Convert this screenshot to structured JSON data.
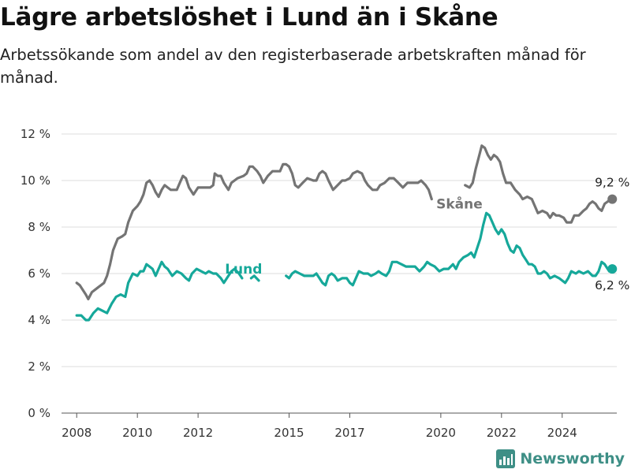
{
  "title": "Lägre arbetslöshet i Lund än i Skåne",
  "subtitle": "Arbetssökande som andel av den registerbaserade arbetskraften månad för månad.",
  "brand": {
    "name": "Newsworthy"
  },
  "colors": {
    "skane": "#747474",
    "lund": "#16a89a",
    "brand": "#3e8f86"
  },
  "chart_data": {
    "type": "line",
    "title": "Lägre arbetslöshet i Lund än i Skåne",
    "subtitle": "Arbetssökande som andel av den registerbaserade arbetskraften månad för månad.",
    "xlim": [
      2007.5,
      2025.8
    ],
    "ylim": [
      0,
      12
    ],
    "y_ticks": [
      0,
      2,
      4,
      6,
      8,
      10,
      12
    ],
    "y_tick_labels": [
      "0 %",
      "2 %",
      "4 %",
      "6 %",
      "8 %",
      "10 %",
      "12 %"
    ],
    "x_ticks": [
      2008,
      2010,
      2012,
      2015,
      2017,
      2020,
      2022,
      2024
    ],
    "x_tick_labels": [
      "2008",
      "2010",
      "2012",
      "2015",
      "2017",
      "2020",
      "2022",
      "2024"
    ],
    "grid": true,
    "legend": "inline labels",
    "series": [
      {
        "name": "Skåne",
        "color": "#747474",
        "end_label": "9,2 %",
        "points": [
          [
            2008.0,
            5.6
          ],
          [
            2008.1,
            5.5
          ],
          [
            2008.2,
            5.3
          ],
          [
            2008.3,
            5.1
          ],
          [
            2008.38,
            4.9
          ],
          [
            2008.5,
            5.2
          ],
          [
            2008.7,
            5.4
          ],
          [
            2008.9,
            5.6
          ],
          [
            2009.0,
            5.9
          ],
          [
            2009.1,
            6.4
          ],
          [
            2009.2,
            7.0
          ],
          [
            2009.35,
            7.5
          ],
          [
            2009.5,
            7.6
          ],
          [
            2009.6,
            7.7
          ],
          [
            2009.7,
            8.2
          ],
          [
            2009.85,
            8.7
          ],
          [
            2010.0,
            8.9
          ],
          [
            2010.1,
            9.1
          ],
          [
            2010.2,
            9.4
          ],
          [
            2010.3,
            9.9
          ],
          [
            2010.4,
            10.0
          ],
          [
            2010.5,
            9.8
          ],
          [
            2010.6,
            9.5
          ],
          [
            2010.7,
            9.3
          ],
          [
            2010.8,
            9.6
          ],
          [
            2010.9,
            9.8
          ],
          [
            2011.0,
            9.7
          ],
          [
            2011.1,
            9.6
          ],
          [
            2011.3,
            9.6
          ],
          [
            2011.4,
            9.9
          ],
          [
            2011.5,
            10.2
          ],
          [
            2011.6,
            10.1
          ],
          [
            2011.7,
            9.7
          ],
          [
            2011.85,
            9.4
          ],
          [
            2012.0,
            9.7
          ],
          [
            2012.2,
            9.7
          ],
          [
            2012.4,
            9.7
          ],
          [
            2012.5,
            9.8
          ],
          [
            2012.55,
            10.3
          ],
          [
            2012.65,
            10.2
          ],
          [
            2012.75,
            10.2
          ],
          [
            2012.85,
            9.9
          ],
          [
            2013.0,
            9.6
          ],
          [
            2013.1,
            9.9
          ],
          [
            2013.3,
            10.1
          ],
          [
            2013.5,
            10.2
          ],
          [
            2013.6,
            10.3
          ],
          [
            2013.7,
            10.6
          ],
          [
            2013.8,
            10.6
          ],
          [
            2013.95,
            10.4
          ],
          [
            2014.05,
            10.2
          ],
          [
            2014.15,
            9.9
          ],
          [
            2014.3,
            10.2
          ],
          [
            2014.45,
            10.4
          ],
          [
            2014.6,
            10.4
          ],
          [
            2014.7,
            10.4
          ],
          [
            2014.8,
            10.7
          ],
          [
            2014.9,
            10.7
          ],
          [
            2015.0,
            10.6
          ],
          [
            2015.1,
            10.3
          ],
          [
            2015.2,
            9.8
          ],
          [
            2015.3,
            9.7
          ],
          [
            2015.45,
            9.9
          ],
          [
            2015.6,
            10.1
          ],
          [
            2015.8,
            10.0
          ],
          [
            2015.9,
            10.0
          ],
          [
            2016.0,
            10.3
          ],
          [
            2016.1,
            10.4
          ],
          [
            2016.2,
            10.3
          ],
          [
            2016.3,
            10.0
          ],
          [
            2016.45,
            9.6
          ],
          [
            2016.6,
            9.8
          ],
          [
            2016.75,
            10.0
          ],
          [
            2016.85,
            10.0
          ],
          [
            2017.0,
            10.1
          ],
          [
            2017.1,
            10.3
          ],
          [
            2017.25,
            10.4
          ],
          [
            2017.4,
            10.3
          ],
          [
            2017.5,
            10.0
          ],
          [
            2017.6,
            9.8
          ],
          [
            2017.75,
            9.6
          ],
          [
            2017.9,
            9.6
          ],
          [
            2018.0,
            9.8
          ],
          [
            2018.15,
            9.9
          ],
          [
            2018.3,
            10.1
          ],
          [
            2018.45,
            10.1
          ],
          [
            2018.6,
            9.9
          ],
          [
            2018.75,
            9.7
          ],
          [
            2018.9,
            9.9
          ],
          [
            2019.1,
            9.9
          ],
          [
            2019.25,
            9.9
          ],
          [
            2019.35,
            10.0
          ],
          [
            2019.5,
            9.8
          ],
          [
            2019.6,
            9.6
          ],
          [
            2019.7,
            9.2
          ]
        ],
        "points_after_label": [
          [
            2020.8,
            9.8
          ],
          [
            2020.95,
            9.7
          ],
          [
            2021.05,
            9.9
          ],
          [
            2021.15,
            10.5
          ],
          [
            2021.25,
            11.0
          ],
          [
            2021.35,
            11.5
          ],
          [
            2021.45,
            11.4
          ],
          [
            2021.55,
            11.1
          ],
          [
            2021.65,
            10.9
          ],
          [
            2021.75,
            11.1
          ],
          [
            2021.85,
            11.0
          ],
          [
            2021.95,
            10.8
          ],
          [
            2022.05,
            10.3
          ],
          [
            2022.15,
            9.9
          ],
          [
            2022.3,
            9.9
          ],
          [
            2022.45,
            9.6
          ],
          [
            2022.6,
            9.4
          ],
          [
            2022.7,
            9.2
          ],
          [
            2022.85,
            9.3
          ],
          [
            2023.0,
            9.2
          ],
          [
            2023.1,
            8.9
          ],
          [
            2023.2,
            8.6
          ],
          [
            2023.35,
            8.7
          ],
          [
            2023.5,
            8.6
          ],
          [
            2023.6,
            8.4
          ],
          [
            2023.7,
            8.6
          ],
          [
            2023.8,
            8.5
          ],
          [
            2023.9,
            8.5
          ],
          [
            2024.05,
            8.4
          ],
          [
            2024.15,
            8.2
          ],
          [
            2024.3,
            8.2
          ],
          [
            2024.4,
            8.5
          ],
          [
            2024.55,
            8.5
          ],
          [
            2024.7,
            8.7
          ],
          [
            2024.8,
            8.8
          ],
          [
            2024.9,
            9.0
          ],
          [
            2025.0,
            9.1
          ],
          [
            2025.1,
            9.0
          ],
          [
            2025.2,
            8.8
          ],
          [
            2025.3,
            8.7
          ],
          [
            2025.4,
            9.0
          ],
          [
            2025.5,
            9.1
          ],
          [
            2025.65,
            9.2
          ]
        ]
      },
      {
        "name": "Lund",
        "color": "#16a89a",
        "end_label": "6,2 %",
        "points_before_label": [
          [
            2008.0,
            4.2
          ],
          [
            2008.15,
            4.2
          ],
          [
            2008.3,
            4.0
          ],
          [
            2008.4,
            4.0
          ],
          [
            2008.55,
            4.3
          ],
          [
            2008.7,
            4.5
          ],
          [
            2008.85,
            4.4
          ],
          [
            2009.0,
            4.3
          ],
          [
            2009.15,
            4.7
          ],
          [
            2009.3,
            5.0
          ],
          [
            2009.45,
            5.1
          ],
          [
            2009.6,
            5.0
          ],
          [
            2009.7,
            5.6
          ],
          [
            2009.85,
            6.0
          ],
          [
            2010.0,
            5.9
          ],
          [
            2010.1,
            6.1
          ],
          [
            2010.2,
            6.1
          ],
          [
            2010.3,
            6.4
          ],
          [
            2010.4,
            6.3
          ],
          [
            2010.5,
            6.2
          ],
          [
            2010.6,
            5.9
          ],
          [
            2010.7,
            6.2
          ],
          [
            2010.8,
            6.5
          ],
          [
            2010.9,
            6.3
          ],
          [
            2011.0,
            6.2
          ],
          [
            2011.15,
            5.9
          ],
          [
            2011.3,
            6.1
          ],
          [
            2011.45,
            6.0
          ],
          [
            2011.6,
            5.8
          ],
          [
            2011.7,
            5.7
          ],
          [
            2011.8,
            6.0
          ],
          [
            2011.95,
            6.2
          ],
          [
            2012.1,
            6.1
          ],
          [
            2012.25,
            6.0
          ],
          [
            2012.35,
            6.1
          ],
          [
            2012.5,
            6.0
          ],
          [
            2012.6,
            6.0
          ],
          [
            2012.75,
            5.8
          ],
          [
            2012.85,
            5.6
          ],
          [
            2013.0,
            5.9
          ],
          [
            2013.1,
            6.1
          ],
          [
            2013.2,
            6.2
          ],
          [
            2013.35,
            6.0
          ],
          [
            2013.45,
            5.8
          ]
        ],
        "points_mid": [
          [
            2013.75,
            5.8
          ],
          [
            2013.85,
            5.9
          ],
          [
            2014.0,
            5.7
          ]
        ],
        "points": [
          [
            2014.9,
            5.9
          ],
          [
            2015.0,
            5.8
          ],
          [
            2015.1,
            6.0
          ],
          [
            2015.2,
            6.1
          ],
          [
            2015.35,
            6.0
          ],
          [
            2015.5,
            5.9
          ],
          [
            2015.65,
            5.9
          ],
          [
            2015.8,
            5.9
          ],
          [
            2015.9,
            6.0
          ],
          [
            2016.0,
            5.8
          ],
          [
            2016.1,
            5.6
          ],
          [
            2016.2,
            5.5
          ],
          [
            2016.3,
            5.9
          ],
          [
            2016.4,
            6.0
          ],
          [
            2016.5,
            5.9
          ],
          [
            2016.6,
            5.7
          ],
          [
            2016.75,
            5.8
          ],
          [
            2016.9,
            5.8
          ],
          [
            2017.0,
            5.6
          ],
          [
            2017.1,
            5.5
          ],
          [
            2017.2,
            5.8
          ],
          [
            2017.3,
            6.1
          ],
          [
            2017.45,
            6.0
          ],
          [
            2017.6,
            6.0
          ],
          [
            2017.7,
            5.9
          ],
          [
            2017.85,
            6.0
          ],
          [
            2017.95,
            6.1
          ],
          [
            2018.05,
            6.0
          ],
          [
            2018.2,
            5.9
          ],
          [
            2018.3,
            6.1
          ],
          [
            2018.4,
            6.5
          ],
          [
            2018.55,
            6.5
          ],
          [
            2018.7,
            6.4
          ],
          [
            2018.85,
            6.3
          ],
          [
            2019.0,
            6.3
          ],
          [
            2019.15,
            6.3
          ],
          [
            2019.3,
            6.1
          ],
          [
            2019.45,
            6.3
          ],
          [
            2019.55,
            6.5
          ],
          [
            2019.65,
            6.4
          ],
          [
            2019.8,
            6.3
          ],
          [
            2019.95,
            6.1
          ],
          [
            2020.1,
            6.2
          ],
          [
            2020.25,
            6.2
          ],
          [
            2020.4,
            6.4
          ],
          [
            2020.5,
            6.2
          ],
          [
            2020.6,
            6.5
          ],
          [
            2020.75,
            6.7
          ],
          [
            2020.9,
            6.8
          ],
          [
            2021.0,
            6.9
          ],
          [
            2021.1,
            6.7
          ],
          [
            2021.2,
            7.1
          ],
          [
            2021.3,
            7.5
          ],
          [
            2021.4,
            8.1
          ],
          [
            2021.5,
            8.6
          ],
          [
            2021.6,
            8.5
          ],
          [
            2021.7,
            8.2
          ],
          [
            2021.8,
            7.9
          ],
          [
            2021.9,
            7.7
          ],
          [
            2022.0,
            7.9
          ],
          [
            2022.1,
            7.7
          ],
          [
            2022.2,
            7.3
          ],
          [
            2022.3,
            7.0
          ],
          [
            2022.4,
            6.9
          ],
          [
            2022.5,
            7.2
          ],
          [
            2022.6,
            7.1
          ],
          [
            2022.7,
            6.8
          ],
          [
            2022.8,
            6.6
          ],
          [
            2022.9,
            6.4
          ],
          [
            2023.0,
            6.4
          ],
          [
            2023.1,
            6.3
          ],
          [
            2023.2,
            6.0
          ],
          [
            2023.3,
            6.0
          ],
          [
            2023.4,
            6.1
          ],
          [
            2023.5,
            6.0
          ],
          [
            2023.6,
            5.8
          ],
          [
            2023.75,
            5.9
          ],
          [
            2023.9,
            5.8
          ],
          [
            2024.0,
            5.7
          ],
          [
            2024.1,
            5.6
          ],
          [
            2024.2,
            5.8
          ],
          [
            2024.3,
            6.1
          ],
          [
            2024.45,
            6.0
          ],
          [
            2024.55,
            6.1
          ],
          [
            2024.7,
            6.0
          ],
          [
            2024.85,
            6.1
          ],
          [
            2025.0,
            5.9
          ],
          [
            2025.1,
            5.9
          ],
          [
            2025.2,
            6.1
          ],
          [
            2025.3,
            6.5
          ],
          [
            2025.4,
            6.4
          ],
          [
            2025.55,
            6.1
          ],
          [
            2025.65,
            6.2
          ]
        ]
      }
    ]
  }
}
